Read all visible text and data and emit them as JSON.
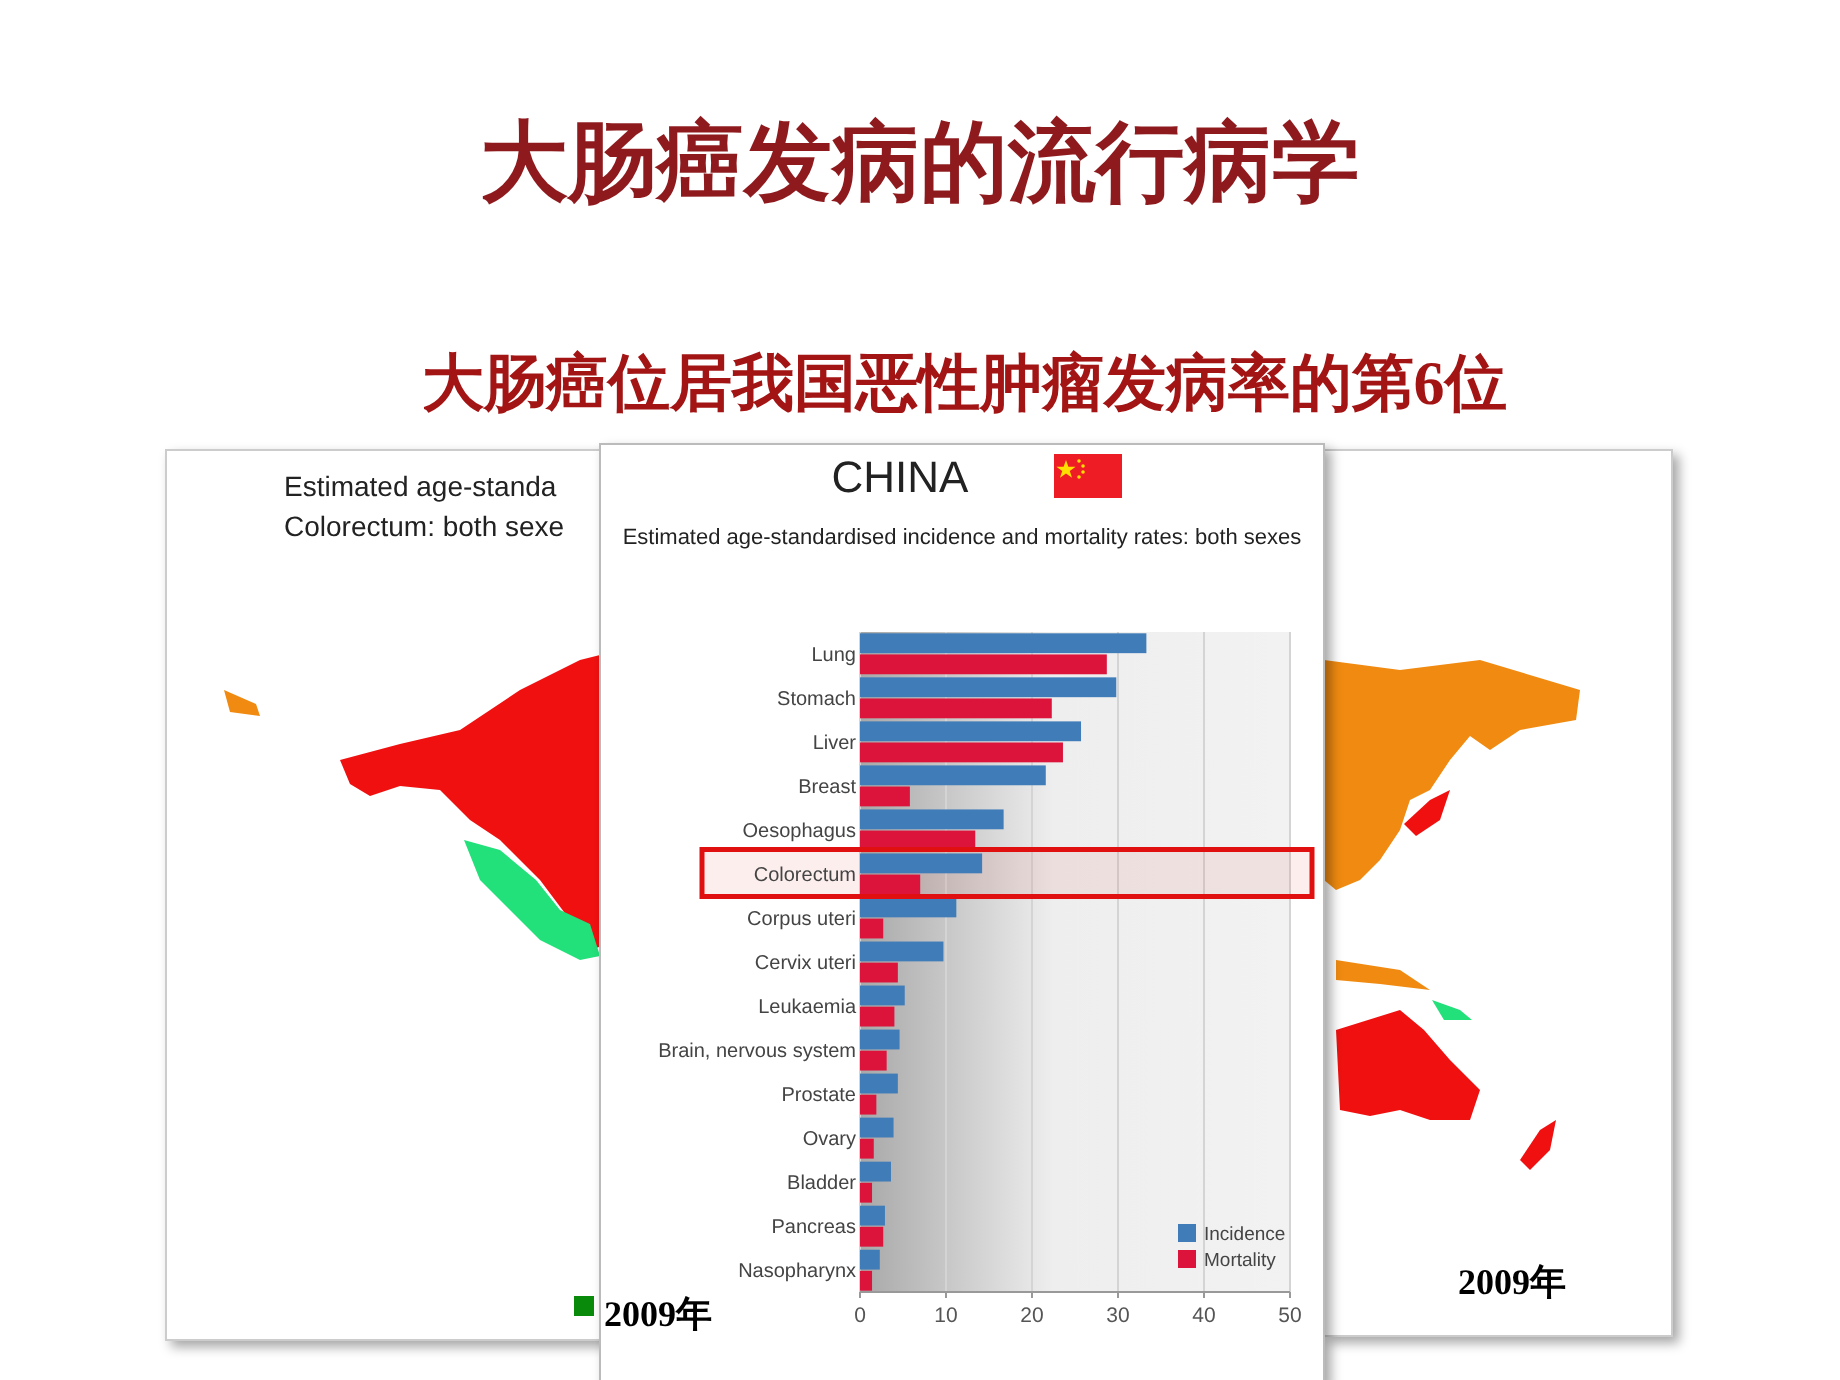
{
  "chart_data": {
    "type": "bar",
    "orientation": "horizontal",
    "title": "大肠癌发病的流行病学",
    "subtitle": "大肠癌位居我国恶性肿瘤发病率的第6位",
    "categories": [
      "Lung",
      "Stomach",
      "Liver",
      "Breast",
      "Oesophagus",
      "Colorectum",
      "Corpus uteri",
      "Cervix uteri",
      "Leukaemia",
      "Brain, nervous system",
      "Prostate",
      "Ovary",
      "Bladder",
      "Pancreas",
      "Nasopharynx"
    ],
    "series": [
      {
        "name": "Incidence",
        "color": "#3f7cb8",
        "values": [
          33.3,
          29.8,
          25.7,
          21.6,
          16.7,
          14.2,
          11.2,
          9.7,
          5.2,
          4.6,
          4.4,
          3.9,
          3.6,
          2.9,
          2.3
        ]
      },
      {
        "name": "Mortality",
        "color": "#dc143c",
        "values": [
          28.7,
          22.3,
          23.6,
          5.8,
          13.4,
          7.0,
          2.7,
          4.4,
          4.0,
          3.1,
          1.9,
          1.6,
          1.4,
          2.7,
          1.4
        ]
      }
    ],
    "xlim": [
      0,
      50
    ],
    "xticks": [
      0,
      10,
      20,
      30,
      40,
      50
    ],
    "grid": "x",
    "legend": "bottom right",
    "bands": [
      {
        "axis": "y",
        "from": "Colorectum",
        "to": "Colorectum",
        "color": "#e01010"
      }
    ],
    "annotations": [
      "CHINA",
      "Estimated age-standardised incidence and mortality rates: both sexes",
      "Estimated age-standa",
      "Colorectum: both sexe",
      "2009年",
      "2009年"
    ]
  }
}
